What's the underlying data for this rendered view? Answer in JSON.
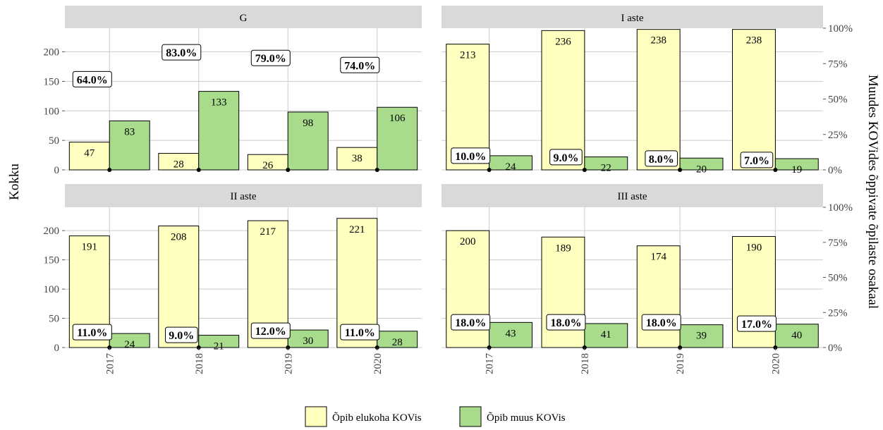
{
  "chart_data": {
    "type": "bar",
    "layout": "faceted 2x2, dual y-axis",
    "y_left_label": "Kokku",
    "y_right_label": "Muudes KOVides õppivate õpilaste osakaal",
    "y_left_ticks": [
      "0",
      "50",
      "100",
      "150",
      "200"
    ],
    "y_right_ticks": [
      "0%",
      "25%",
      "50%",
      "75%",
      "100%"
    ],
    "ylim": [
      0,
      240
    ],
    "categories": [
      "2017",
      "2018",
      "2019",
      "2020"
    ],
    "legend": {
      "position": "bottom",
      "items": [
        {
          "label": "Õpib elukoha KOVis",
          "color": "#ffffc0"
        },
        {
          "label": "Õpib muus KOVis",
          "color": "#a8dc8c"
        }
      ]
    },
    "colors": {
      "series1": "#ffffc0",
      "series2": "#a8dc8c",
      "strip": "#d9d9d9",
      "grid": "#cccccc"
    },
    "facets": [
      {
        "title": "G",
        "series1": [
          47,
          28,
          26,
          38
        ],
        "series2": [
          83,
          133,
          98,
          106
        ],
        "share_values": [
          64.0,
          83.0,
          79.0,
          74.0
        ],
        "share_labels": [
          "64.0%",
          "83.0%",
          "79.0%",
          "74.0%"
        ],
        "series1_labels": [
          "47",
          "28",
          "26",
          "38"
        ],
        "series2_labels": [
          "83",
          "133",
          "98",
          "106"
        ]
      },
      {
        "title": "I aste",
        "series1": [
          213,
          236,
          238,
          238
        ],
        "series2": [
          24,
          22,
          20,
          19
        ],
        "share_values": [
          10.0,
          9.0,
          8.0,
          7.0
        ],
        "share_labels": [
          "10.0%",
          "9.0%",
          "8.0%",
          "7.0%"
        ],
        "series1_labels": [
          "213",
          "236",
          "238",
          "238"
        ],
        "series2_labels": [
          "24",
          "22",
          "20",
          "19"
        ]
      },
      {
        "title": "II aste",
        "series1": [
          191,
          208,
          217,
          221
        ],
        "series2": [
          24,
          21,
          30,
          28
        ],
        "share_values": [
          11.0,
          9.0,
          12.0,
          11.0
        ],
        "share_labels": [
          "11.0%",
          "9.0%",
          "12.0%",
          "11.0%"
        ],
        "series1_labels": [
          "191",
          "208",
          "217",
          "221"
        ],
        "series2_labels": [
          "24",
          "21",
          "30",
          "28"
        ]
      },
      {
        "title": "III aste",
        "series1": [
          200,
          189,
          174,
          190
        ],
        "series2": [
          43,
          41,
          39,
          40
        ],
        "share_values": [
          18.0,
          18.0,
          18.0,
          17.0
        ],
        "share_labels": [
          "18.0%",
          "18.0%",
          "18.0%",
          "17.0%"
        ],
        "series1_labels": [
          "200",
          "189",
          "174",
          "190"
        ],
        "series2_labels": [
          "43",
          "41",
          "39",
          "40"
        ]
      }
    ]
  }
}
